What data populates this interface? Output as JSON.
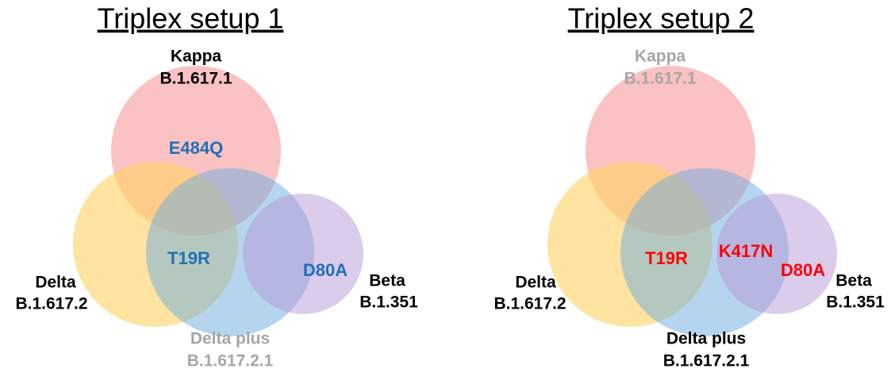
{
  "panels": [
    {
      "title": "Triplex setup 1",
      "sets": [
        {
          "name": "Kappa",
          "lineage": "B.1.617.1"
        },
        {
          "name": "Delta",
          "lineage": "B.1.617.2"
        },
        {
          "name": "Delta plus",
          "lineage": "B.1.617.2.1"
        },
        {
          "name": "Beta",
          "lineage": "B.1.351"
        }
      ],
      "mutations": [
        "E484Q",
        "T19R",
        "D80A"
      ]
    },
    {
      "title": "Triplex setup 2",
      "sets": [
        {
          "name": "Kappa",
          "lineage": "B.1.617.1"
        },
        {
          "name": "Delta",
          "lineage": "B.1.617.2"
        },
        {
          "name": "Delta plus",
          "lineage": "B.1.617.2.1"
        },
        {
          "name": "Beta",
          "lineage": "B.1.351"
        }
      ],
      "mutations": [
        "T19R",
        "K417N",
        "D80A"
      ]
    }
  ]
}
